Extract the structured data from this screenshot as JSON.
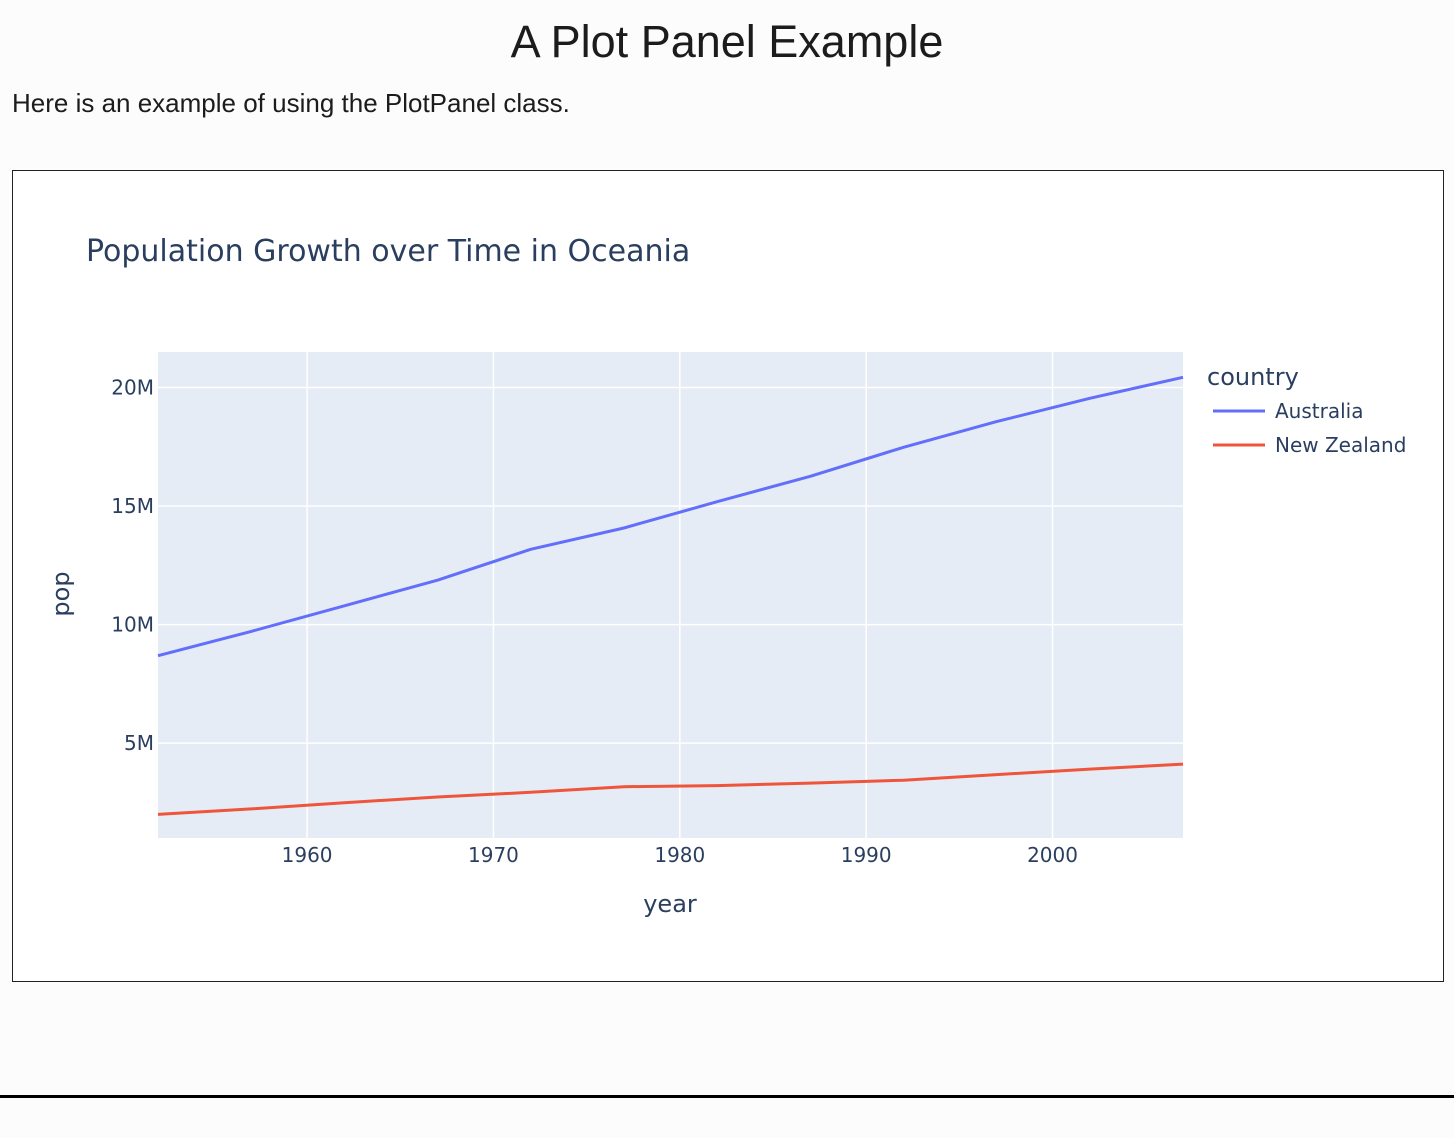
{
  "page": {
    "title": "A Plot Panel Example",
    "intro": "Here is an example of using the PlotPanel class."
  },
  "colors": {
    "plot_background": "#e5ecf6",
    "gridline": "#ffffff",
    "text": "#2a3f5f",
    "australia": "#636efa",
    "new_zealand": "#ef553b"
  },
  "chart_data": {
    "type": "line",
    "title": "Population Growth over Time in Oceania",
    "xlabel": "year",
    "ylabel": "pop",
    "legend_title": "country",
    "legend_position": "right",
    "grid": true,
    "xlim": [
      1952,
      2007
    ],
    "ylim": [
      1000000,
      21500000
    ],
    "x_ticks": [
      1960,
      1970,
      1980,
      1990,
      2000
    ],
    "x_tick_labels": [
      "1960",
      "1970",
      "1980",
      "1990",
      "2000"
    ],
    "y_ticks": [
      5000000,
      10000000,
      15000000,
      20000000
    ],
    "y_tick_labels": [
      "5M",
      "10M",
      "15M",
      "20M"
    ],
    "x": [
      1952,
      1957,
      1962,
      1967,
      1972,
      1977,
      1982,
      1987,
      1992,
      1997,
      2002,
      2007
    ],
    "series": [
      {
        "name": "Australia",
        "values": [
          8691212,
          9712569,
          10794968,
          11872264,
          13177000,
          14074100,
          15184200,
          16257249,
          17481977,
          18565243,
          19546792,
          20434176
        ]
      },
      {
        "name": "New Zealand",
        "values": [
          1994794,
          2229407,
          2488550,
          2728150,
          2929100,
          3164900,
          3210650,
          3317166,
          3437674,
          3676187,
          3908037,
          4115771
        ]
      }
    ]
  }
}
